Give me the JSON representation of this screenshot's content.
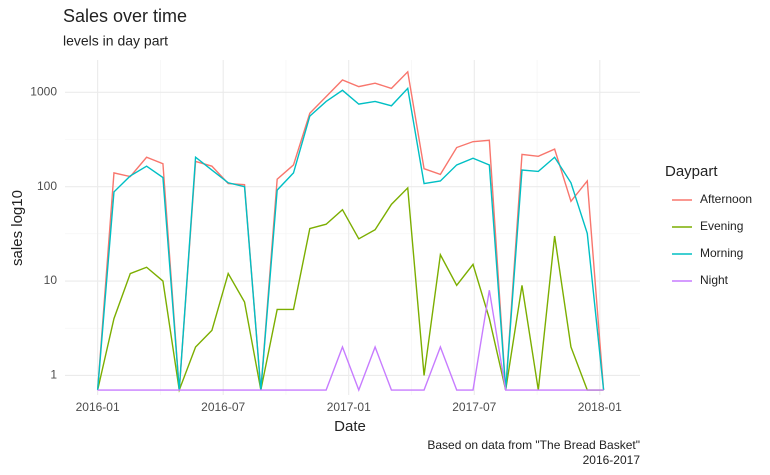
{
  "chart_data": {
    "type": "line",
    "title": "Sales over time",
    "subtitle": "levels in day part",
    "x_label": "Date",
    "y_label": "sales log10",
    "caption": [
      "Based on data from \"The Bread Basket\"",
      "2016-2017"
    ],
    "legend_title": "Daypart",
    "legend_position": "right",
    "log_y": true,
    "grid": true,
    "x": [
      2016.0,
      2016.065,
      2016.13,
      2016.195,
      2016.26,
      2016.325,
      2016.39,
      2016.455,
      2016.52,
      2016.585,
      2016.65,
      2016.715,
      2016.78,
      2016.845,
      2016.91,
      2016.975,
      2017.04,
      2017.105,
      2017.17,
      2017.235,
      2017.3,
      2017.365,
      2017.43,
      2017.495,
      2017.56,
      2017.625,
      2017.69,
      2017.755,
      2017.82,
      2017.885,
      2017.95,
      2018.015
    ],
    "xlim": [
      2015.87,
      2018.16
    ],
    "xticks": [
      {
        "value": 2016.0,
        "label": "2016-01"
      },
      {
        "value": 2016.5,
        "label": "2016-07"
      },
      {
        "value": 2017.0,
        "label": "2017-01"
      },
      {
        "value": 2017.5,
        "label": "2017-07"
      },
      {
        "value": 2018.0,
        "label": "2018-01"
      }
    ],
    "ylim": [
      0.62,
      2200
    ],
    "yticks": [
      1,
      10,
      100,
      1000
    ],
    "series": [
      {
        "name": "Afternoon",
        "color": "#F8766D",
        "values": [
          0.7,
          140,
          128,
          205,
          175,
          0.7,
          185,
          165,
          108,
          105,
          0.7,
          120,
          170,
          600,
          900,
          1350,
          1150,
          1250,
          1100,
          1650,
          155,
          135,
          260,
          300,
          310,
          0.7,
          220,
          210,
          250,
          70,
          115,
          0.7
        ]
      },
      {
        "name": "Evening",
        "color": "#7CAE00",
        "values": [
          0.7,
          4,
          12,
          14,
          10,
          0.7,
          2,
          3,
          12,
          6,
          0.7,
          5,
          5,
          36,
          40,
          57,
          28,
          35,
          65,
          97,
          1,
          19,
          9,
          15,
          4,
          0.7,
          9,
          0.7,
          30,
          2,
          0.7,
          0.7
        ]
      },
      {
        "name": "Morning",
        "color": "#00BFC4",
        "values": [
          0.7,
          88,
          130,
          165,
          125,
          0.7,
          205,
          150,
          110,
          100,
          0.7,
          92,
          140,
          560,
          800,
          1050,
          750,
          800,
          720,
          1100,
          108,
          115,
          170,
          200,
          170,
          0.7,
          150,
          145,
          205,
          110,
          32,
          0.7
        ]
      },
      {
        "name": "Night",
        "color": "#C77CFF",
        "values": [
          0.7,
          0.7,
          0.7,
          0.7,
          0.7,
          0.7,
          0.7,
          0.7,
          0.7,
          0.7,
          0.7,
          0.7,
          0.7,
          0.7,
          0.7,
          2,
          0.7,
          2,
          0.7,
          0.7,
          0.7,
          2,
          0.7,
          0.7,
          8,
          0.7,
          0.7,
          0.7,
          0.7,
          0.7,
          0.7,
          0.7
        ]
      }
    ]
  }
}
